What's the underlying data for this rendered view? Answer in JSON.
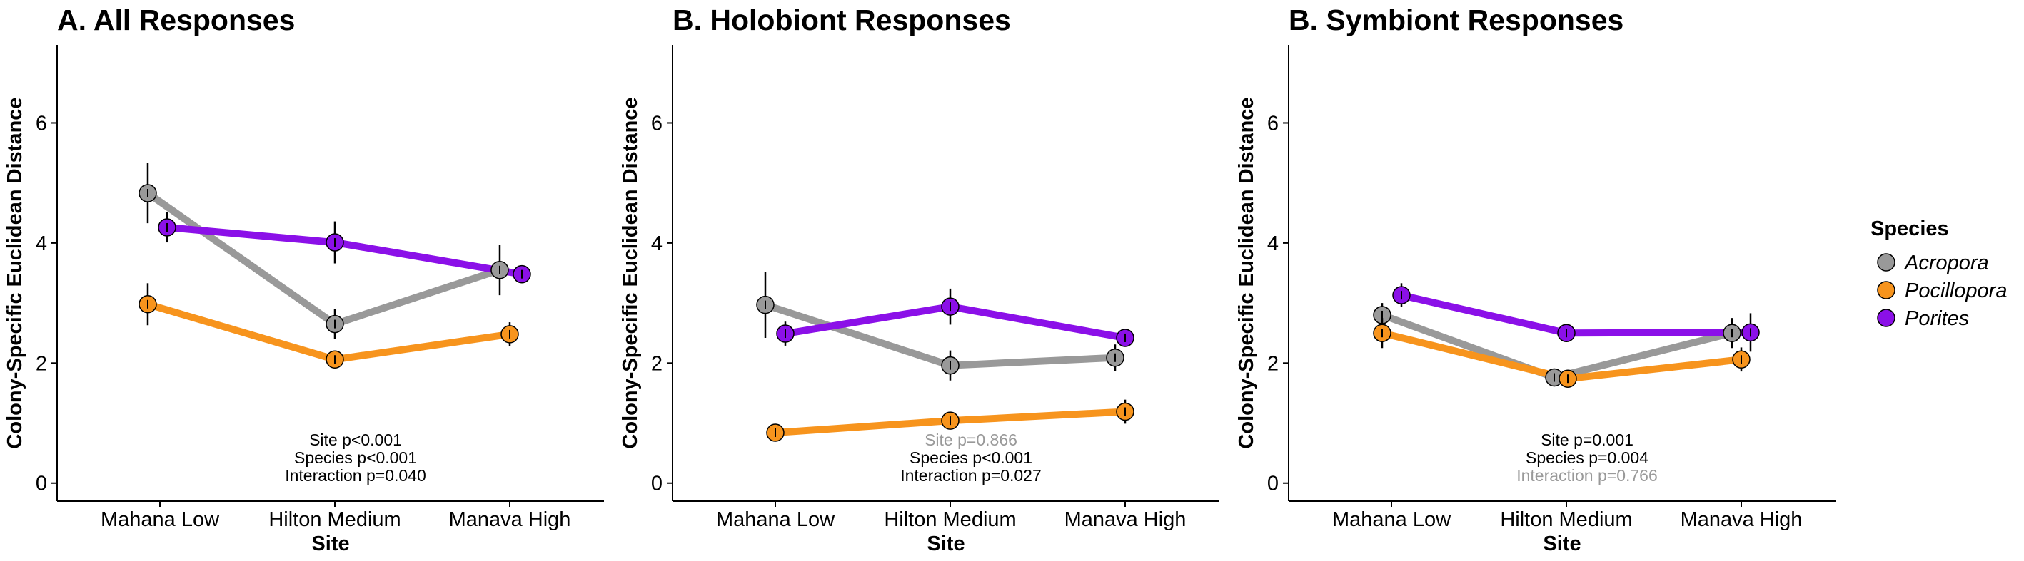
{
  "legend": {
    "title": "Species",
    "items": [
      {
        "name": "Acropora",
        "color": "#999999"
      },
      {
        "name": "Pocillopora",
        "color": "#F7941D"
      },
      {
        "name": "Porites",
        "color": "#8B10E8"
      }
    ]
  },
  "chart_data": [
    {
      "type": "line",
      "title": "A. All Responses",
      "xlabel": "Site",
      "ylabel": "Colony-Specific Euclidean Distance",
      "categories": [
        "Mahana Low",
        "Hilton Medium",
        "Manava High"
      ],
      "ylim": [
        -0.3,
        7.3
      ],
      "yticks": [
        0,
        2,
        4,
        6
      ],
      "grid": false,
      "series": [
        {
          "name": "Acropora",
          "values": [
            4.83,
            2.65,
            3.55
          ],
          "err": [
            0.5,
            0.25,
            0.42
          ]
        },
        {
          "name": "Pocillopora",
          "values": [
            2.98,
            2.06,
            2.48
          ],
          "err": [
            0.35,
            0.14,
            0.2
          ]
        },
        {
          "name": "Porites",
          "values": [
            4.26,
            4.01,
            3.48
          ],
          "err": [
            0.25,
            0.35,
            0.15
          ]
        }
      ],
      "annotations": [
        {
          "text": "Site p<0.001",
          "color": "#000000"
        },
        {
          "text": "Species p<0.001",
          "color": "#000000"
        },
        {
          "text": "Interaction p=0.040",
          "color": "#000000"
        }
      ]
    },
    {
      "type": "line",
      "title": "B. Holobiont Responses",
      "xlabel": "Site",
      "ylabel": "Colony-Specific Euclidean Distance",
      "categories": [
        "Mahana Low",
        "Hilton Medium",
        "Manava High"
      ],
      "ylim": [
        -0.3,
        7.3
      ],
      "yticks": [
        0,
        2,
        4,
        6
      ],
      "grid": false,
      "series": [
        {
          "name": "Acropora",
          "values": [
            2.97,
            1.96,
            2.09
          ],
          "err": [
            0.55,
            0.25,
            0.22
          ]
        },
        {
          "name": "Pocillopora",
          "values": [
            0.84,
            1.04,
            1.19
          ],
          "err": [
            0.06,
            0.08,
            0.2
          ]
        },
        {
          "name": "Porites",
          "values": [
            2.49,
            2.94,
            2.42
          ],
          "err": [
            0.2,
            0.3,
            0.15
          ]
        }
      ],
      "annotations": [
        {
          "text": "Site p=0.866",
          "color": "#999999"
        },
        {
          "text": "Species p<0.001",
          "color": "#000000"
        },
        {
          "text": "Interaction p=0.027",
          "color": "#000000"
        }
      ]
    },
    {
      "type": "line",
      "title": "B. Symbiont Responses",
      "xlabel": "Site",
      "ylabel": "Colony-Specific Euclidean Distance",
      "categories": [
        "Mahana Low",
        "Hilton Medium",
        "Manava High"
      ],
      "ylim": [
        -0.3,
        7.3
      ],
      "yticks": [
        0,
        2,
        4,
        6
      ],
      "grid": false,
      "series": [
        {
          "name": "Acropora",
          "values": [
            2.8,
            1.76,
            2.5
          ],
          "err": [
            0.2,
            0.15,
            0.25
          ]
        },
        {
          "name": "Pocillopora",
          "values": [
            2.5,
            1.74,
            2.06
          ],
          "err": [
            0.25,
            0.1,
            0.2
          ]
        },
        {
          "name": "Porites",
          "values": [
            3.13,
            2.5,
            2.51
          ],
          "err": [
            0.2,
            0.15,
            0.32
          ]
        }
      ],
      "annotations": [
        {
          "text": "Site p=0.001",
          "color": "#000000"
        },
        {
          "text": "Species p=0.004",
          "color": "#000000"
        },
        {
          "text": "Interaction p=0.766",
          "color": "#999999"
        }
      ]
    }
  ]
}
